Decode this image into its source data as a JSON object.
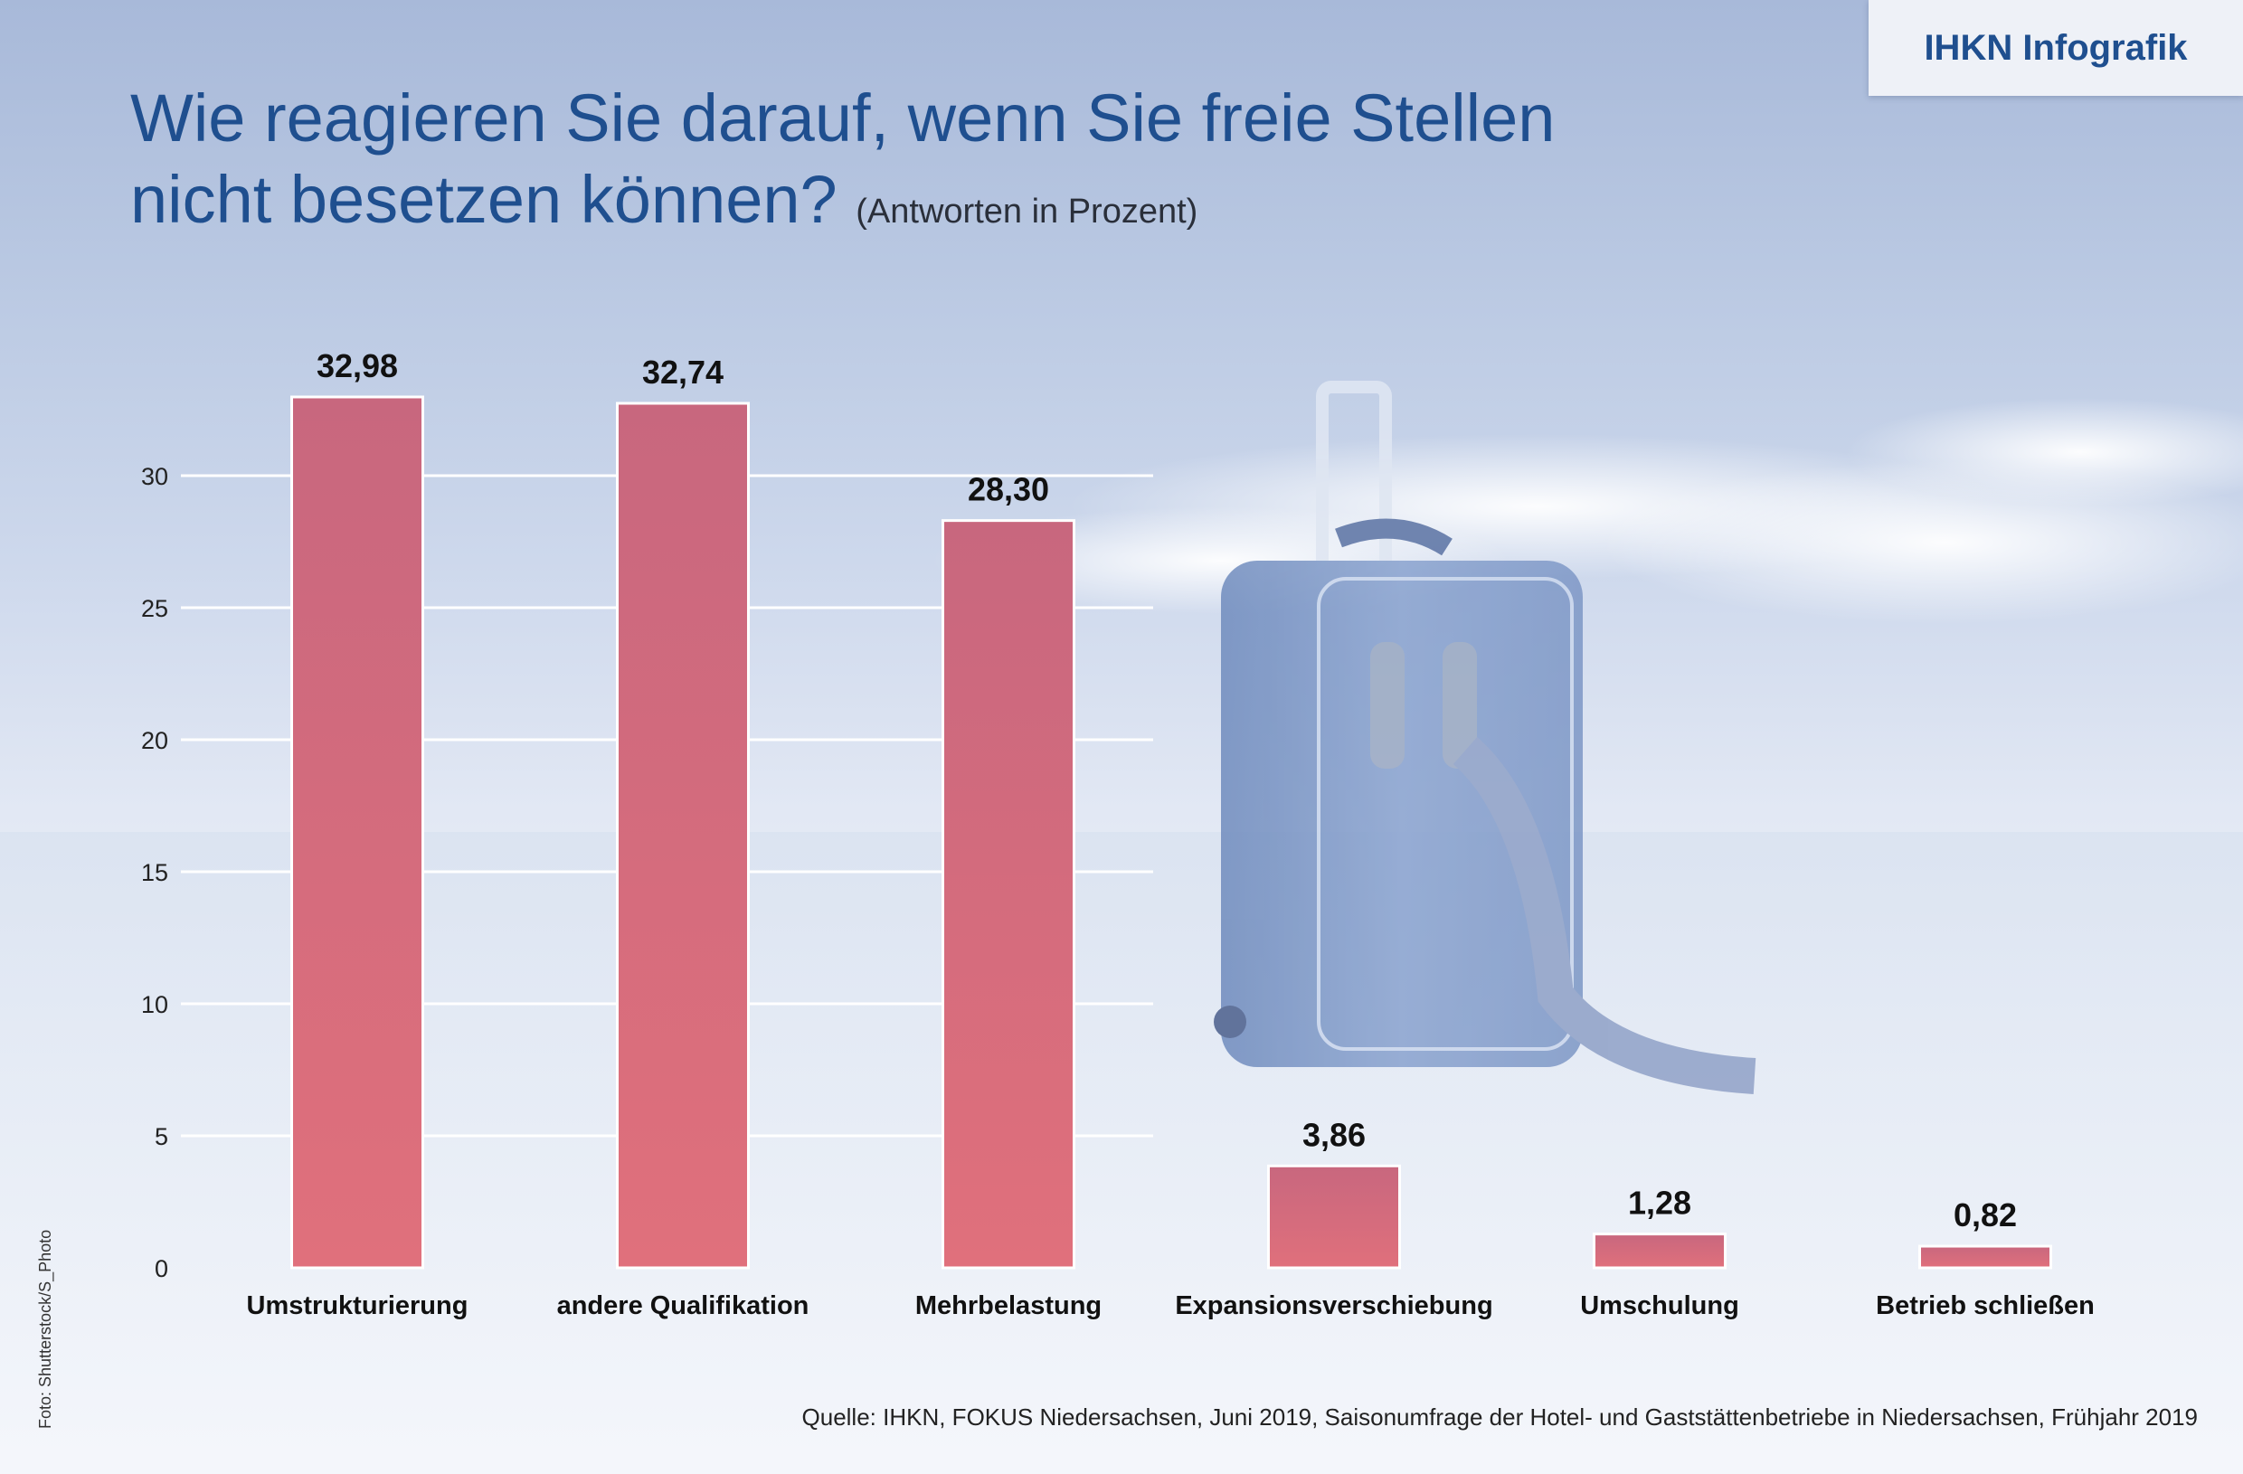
{
  "badge": "IHKN Infografik",
  "title_line1": "Wie reagieren Sie darauf, wenn Sie freie Stellen",
  "title_line2": "nicht besetzen können?",
  "title_sub": "(Antworten in Prozent)",
  "photo_credit": "Foto: Shutterstock/S_Photo",
  "source": "Quelle: IHKN, FOKUS Niedersachsen, Juni 2019, Saisonumfrage der Hotel- und Gaststättenbetriebe in Niedersachsen, Frühjahr 2019",
  "colors": {
    "title": "#1f4f8f",
    "bar_top": "#c8677e",
    "bar_bottom": "#e0707c",
    "badge_text": "#1f4f8f"
  },
  "chart_data": {
    "type": "bar",
    "title": "Wie reagieren Sie darauf, wenn Sie freie Stellen nicht besetzen können?",
    "subtitle": "(Antworten in Prozent)",
    "categories": [
      "Umstrukturierung",
      "andere Qualifikation",
      "Mehrbelastung",
      "Expansionsverschiebung",
      "Umschulung",
      "Betrieb schließen"
    ],
    "values": [
      32.98,
      32.74,
      28.3,
      3.86,
      1.28,
      0.82
    ],
    "value_labels": [
      "32,98",
      "32,74",
      "28,30",
      "3,86",
      "1,28",
      "0,82"
    ],
    "yticks": [
      0,
      5,
      10,
      15,
      20,
      25,
      30
    ],
    "ylim": [
      0,
      30
    ],
    "grid": true,
    "legend": "none"
  }
}
